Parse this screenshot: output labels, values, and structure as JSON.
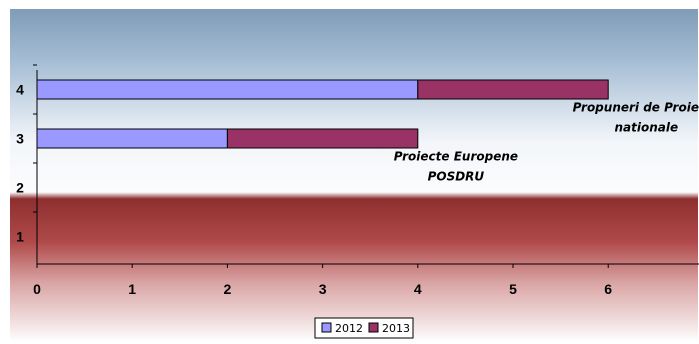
{
  "chart_data": {
    "type": "bar",
    "orientation": "horizontal",
    "stacked": true,
    "categories": [
      "1",
      "2",
      "3",
      "4"
    ],
    "series": [
      {
        "name": "2012",
        "values": [
          0,
          0,
          2,
          4
        ],
        "color": "#9999ff"
      },
      {
        "name": "2013",
        "values": [
          0,
          0,
          2,
          2
        ],
        "color": "#993366"
      }
    ],
    "xlim": [
      0,
      7
    ],
    "xticks": [
      "0",
      "1",
      "2",
      "3",
      "4",
      "5",
      "6"
    ],
    "annotations": [
      {
        "lines": [
          "Propuneri de Proiecte",
          "nationale"
        ],
        "category": "4",
        "x": 6.4
      },
      {
        "lines": [
          "Proiecte Europene",
          "POSDRU"
        ],
        "category": "3",
        "x": 4.4
      }
    ],
    "legend": "bottom",
    "grid": false
  }
}
